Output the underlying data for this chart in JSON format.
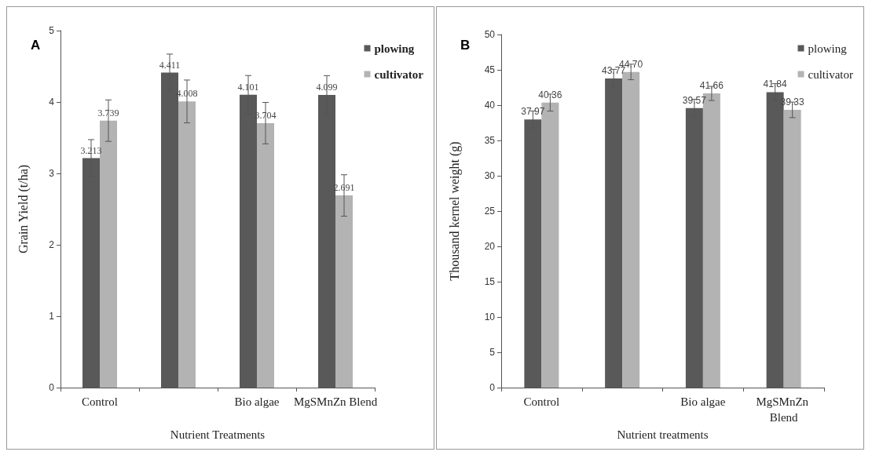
{
  "chart_data": [
    {
      "type": "bar",
      "annotations": [
        "A"
      ],
      "xlabel": "Nutrient Treatments",
      "ylabel": "Grain Yield (t/ha)",
      "categories": [
        "Control",
        null,
        "Bio algae",
        "MgSMnZn Blend"
      ],
      "series": [
        {
          "name": "plowing",
          "color": "#595959",
          "values": [
            3.213,
            4.411,
            4.101,
            4.099
          ],
          "errors": [
            0.26,
            0.26,
            0.27,
            0.27
          ]
        },
        {
          "name": "cultivator",
          "color": "#b3b3b3",
          "values": [
            3.739,
            4.008,
            3.704,
            2.691
          ],
          "errors": [
            0.29,
            0.3,
            0.29,
            0.29
          ]
        }
      ],
      "ylim": [
        0,
        5
      ],
      "yticks": [
        0,
        1,
        2,
        3,
        4,
        5
      ],
      "grid": false,
      "legend": "top right",
      "data_labels": true
    },
    {
      "type": "bar",
      "annotations": [
        "B"
      ],
      "xlabel": "Nutrient treatments",
      "ylabel": "Thousand kernel weight (g)",
      "categories": [
        "Control",
        null,
        "Bio algae",
        "MgSMnZn Blend"
      ],
      "series": [
        {
          "name": "plowing",
          "color": "#595959",
          "values": [
            37.97,
            43.77,
            39.57,
            41.84
          ],
          "value_labels": [
            "37.97",
            "43.77",
            "39.57",
            "41.84"
          ],
          "errors": [
            1.2,
            1.3,
            1.25,
            1.2
          ]
        },
        {
          "name": "cultivator",
          "color": "#b3b3b3",
          "values": [
            40.36,
            44.7,
            41.66,
            39.33
          ],
          "value_labels": [
            "40.36",
            "44.70",
            "41.66",
            "39.33"
          ],
          "errors": [
            1.2,
            1.1,
            1.0,
            1.1
          ]
        }
      ],
      "ylim": [
        0,
        50
      ],
      "yticks": [
        0,
        5,
        10,
        15,
        20,
        25,
        30,
        35,
        40,
        45,
        50
      ],
      "grid": false,
      "legend": "top right"
    }
  ]
}
